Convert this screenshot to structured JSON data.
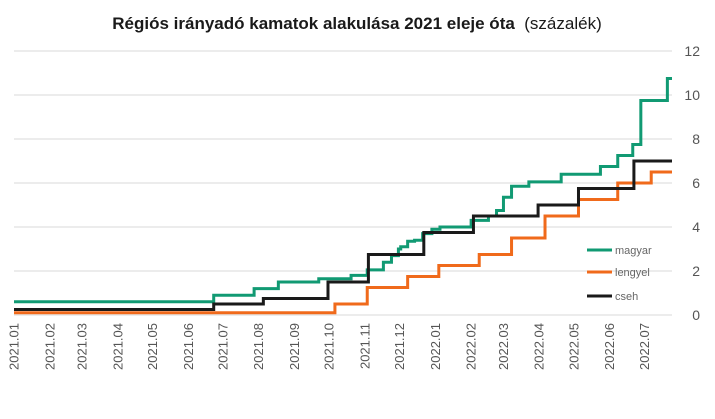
{
  "chart_data": {
    "type": "line",
    "title": "Régiós irányadó kamatok alakulása 2021 eleje óta",
    "subtitle": "(százalék)",
    "xlabel": "",
    "ylabel": "",
    "ylim": [
      0,
      12
    ],
    "y_ticks": [
      "0",
      "2",
      "4",
      "6",
      "8",
      "10",
      "12"
    ],
    "y_axis_position": "right",
    "x_range": [
      "2021-01-01",
      "2022-07-25"
    ],
    "x_tick_labels": [
      "2021.01",
      "2021.02",
      "2021.03",
      "2021.04",
      "2021.05",
      "2021.06",
      "2021.07",
      "2021.08",
      "2021.09",
      "2021.10",
      "2021.11",
      "2021.12",
      "2022.01",
      "2022.02",
      "2022.03",
      "2022.04",
      "2022.05",
      "2022.06",
      "2022.07"
    ],
    "grid": true,
    "legend_position": "right",
    "step": true,
    "series": [
      {
        "name": "magyar",
        "color": "#119a73",
        "points": [
          [
            "2021-01-01",
            0.6
          ],
          [
            "2021-06-23",
            0.9
          ],
          [
            "2021-07-28",
            1.2
          ],
          [
            "2021-08-18",
            1.5
          ],
          [
            "2021-09-22",
            1.65
          ],
          [
            "2021-10-20",
            1.8
          ],
          [
            "2021-11-03",
            2.05
          ],
          [
            "2021-11-17",
            2.4
          ],
          [
            "2021-11-24",
            2.7
          ],
          [
            "2021-11-30",
            3.0
          ],
          [
            "2021-12-02",
            3.1
          ],
          [
            "2021-12-08",
            3.35
          ],
          [
            "2021-12-14",
            3.4
          ],
          [
            "2021-12-21",
            3.7
          ],
          [
            "2021-12-29",
            3.9
          ],
          [
            "2022-01-05",
            4.0
          ],
          [
            "2022-02-01",
            4.3
          ],
          [
            "2022-02-16",
            4.5
          ],
          [
            "2022-02-23",
            4.75
          ],
          [
            "2022-03-01",
            5.35
          ],
          [
            "2022-03-08",
            5.85
          ],
          [
            "2022-03-23",
            6.05
          ],
          [
            "2022-04-20",
            6.4
          ],
          [
            "2022-05-24",
            6.75
          ],
          [
            "2022-06-08",
            7.25
          ],
          [
            "2022-06-21",
            7.75
          ],
          [
            "2022-06-28",
            9.75
          ],
          [
            "2022-07-21",
            10.75
          ],
          [
            "2022-07-25",
            10.75
          ]
        ]
      },
      {
        "name": "lengyel",
        "color": "#f06a1b",
        "points": [
          [
            "2021-01-01",
            0.1
          ],
          [
            "2021-10-06",
            0.5
          ],
          [
            "2021-11-03",
            1.25
          ],
          [
            "2021-12-08",
            1.75
          ],
          [
            "2022-01-04",
            2.25
          ],
          [
            "2022-02-08",
            2.75
          ],
          [
            "2022-03-08",
            3.5
          ],
          [
            "2022-04-06",
            4.5
          ],
          [
            "2022-05-05",
            5.25
          ],
          [
            "2022-06-08",
            6.0
          ],
          [
            "2022-07-07",
            6.5
          ],
          [
            "2022-07-25",
            6.5
          ]
        ]
      },
      {
        "name": "cseh",
        "color": "#1a1a1a",
        "points": [
          [
            "2021-01-01",
            0.25
          ],
          [
            "2021-06-23",
            0.5
          ],
          [
            "2021-08-05",
            0.75
          ],
          [
            "2021-09-30",
            1.5
          ],
          [
            "2021-11-04",
            2.75
          ],
          [
            "2021-12-22",
            3.75
          ],
          [
            "2022-02-03",
            4.5
          ],
          [
            "2022-03-31",
            5.0
          ],
          [
            "2022-05-05",
            5.75
          ],
          [
            "2022-06-22",
            7.0
          ],
          [
            "2022-07-25",
            7.0
          ]
        ]
      }
    ]
  }
}
